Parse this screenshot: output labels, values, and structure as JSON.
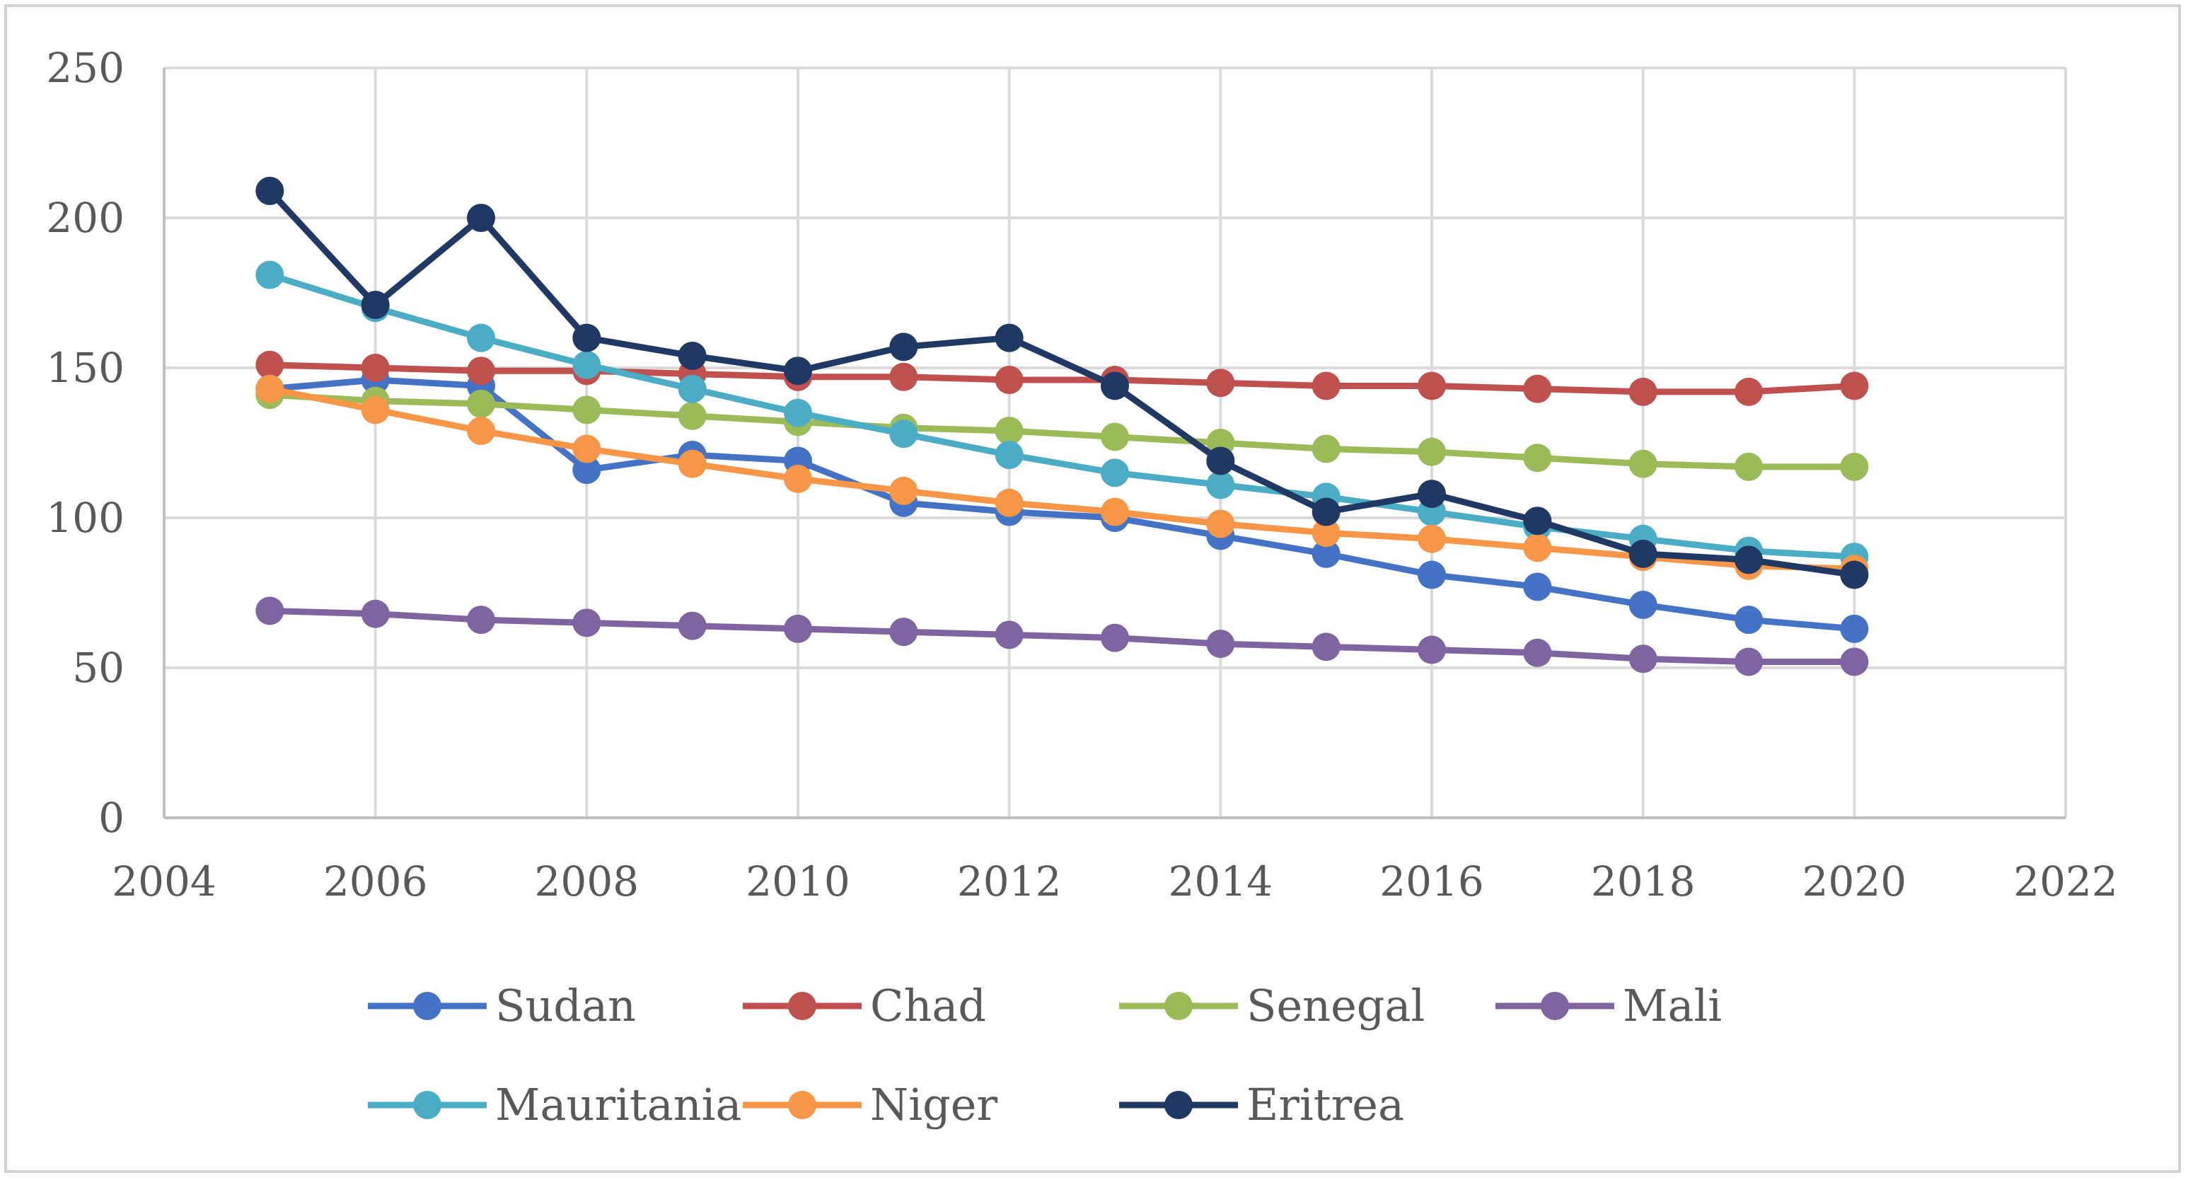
{
  "chart_data": {
    "type": "line",
    "title": "",
    "xlabel": "",
    "ylabel": "",
    "xlim": [
      2004,
      2022
    ],
    "ylim": [
      0,
      250
    ],
    "x_ticks": [
      2004,
      2006,
      2008,
      2010,
      2012,
      2014,
      2016,
      2018,
      2020,
      2022
    ],
    "y_ticks": [
      0,
      50,
      100,
      150,
      200,
      250
    ],
    "grid": true,
    "legend_position": "bottom",
    "x": [
      2005,
      2006,
      2007,
      2008,
      2009,
      2010,
      2011,
      2012,
      2013,
      2014,
      2015,
      2016,
      2017,
      2018,
      2019,
      2020
    ],
    "series": [
      {
        "name": "Sudan",
        "color": "#4472C4",
        "values": [
          143,
          146,
          144,
          116,
          121,
          119,
          105,
          102,
          100,
          94,
          88,
          81,
          77,
          71,
          66,
          63
        ]
      },
      {
        "name": "Chad",
        "color": "#C0504D",
        "values": [
          151,
          150,
          149,
          149,
          148,
          147,
          147,
          146,
          146,
          145,
          144,
          144,
          143,
          142,
          142,
          144
        ]
      },
      {
        "name": "Senegal",
        "color": "#9BBB59",
        "values": [
          141,
          139,
          138,
          136,
          134,
          132,
          130,
          129,
          127,
          125,
          123,
          122,
          120,
          118,
          117,
          117
        ]
      },
      {
        "name": "Mali",
        "color": "#8064A2",
        "values": [
          69,
          68,
          66,
          65,
          64,
          63,
          62,
          61,
          60,
          58,
          57,
          56,
          55,
          53,
          52,
          52
        ]
      },
      {
        "name": "Mauritania",
        "color": "#4BACC6",
        "values": [
          181,
          170,
          160,
          151,
          143,
          135,
          128,
          121,
          115,
          111,
          107,
          102,
          97,
          93,
          89,
          87
        ]
      },
      {
        "name": "Niger",
        "color": "#F79646",
        "values": [
          143,
          136,
          129,
          123,
          118,
          113,
          109,
          105,
          102,
          98,
          95,
          93,
          90,
          87,
          84,
          83
        ]
      },
      {
        "name": "Eritrea",
        "color": "#1F3864",
        "values": [
          209,
          171,
          200,
          160,
          154,
          149,
          157,
          160,
          144,
          119,
          102,
          108,
          99,
          88,
          86,
          81
        ]
      }
    ]
  }
}
